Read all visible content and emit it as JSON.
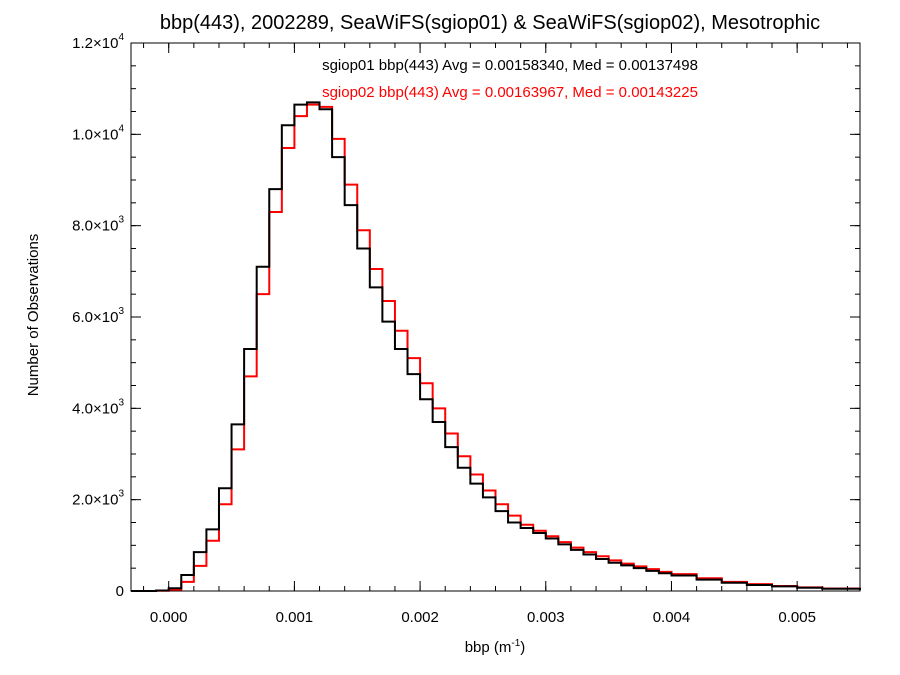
{
  "chart_data": {
    "type": "line",
    "title": "bbp(443), 2002289, SeaWiFS(sgiop01) & SeaWiFS(sgiop02), Mesotrophic",
    "xlabel": {
      "text": "bbp (m",
      "sup": "-1",
      "tail": ")"
    },
    "ylabel": "Number of Observations",
    "xlim": [
      -0.0003,
      0.0055
    ],
    "ylim": [
      0,
      12000
    ],
    "x_ticks": [
      {
        "value": 0.0,
        "label": "0.000"
      },
      {
        "value": 0.001,
        "label": "0.001"
      },
      {
        "value": 0.002,
        "label": "0.002"
      },
      {
        "value": 0.003,
        "label": "0.003"
      },
      {
        "value": 0.004,
        "label": "0.004"
      },
      {
        "value": 0.005,
        "label": "0.005"
      }
    ],
    "y_ticks": [
      {
        "value": 0,
        "mant": "0",
        "exp": ""
      },
      {
        "value": 2000,
        "mant": "2.0×10",
        "exp": "3"
      },
      {
        "value": 4000,
        "mant": "4.0×10",
        "exp": "3"
      },
      {
        "value": 6000,
        "mant": "6.0×10",
        "exp": "3"
      },
      {
        "value": 8000,
        "mant": "8.0×10",
        "exp": "3"
      },
      {
        "value": 10000,
        "mant": "1.0×10",
        "exp": "4"
      },
      {
        "value": 12000,
        "mant": "1.2×10",
        "exp": "4"
      }
    ],
    "grid": false,
    "annotations": [
      {
        "text": "sgiop01 bbp(443) Avg = 0.00158340, Med = 0.00137498",
        "color": "#000000"
      },
      {
        "text": "sgiop02 bbp(443) Avg = 0.00163967, Med = 0.00143225",
        "color": "#ff0000"
      }
    ],
    "series": [
      {
        "color": "#000000",
        "x": [
          -0.0003,
          -0.0002,
          -0.0001,
          0.0,
          0.0001,
          0.0002,
          0.0003,
          0.0004,
          0.0005,
          0.0006,
          0.0007,
          0.0008,
          0.0009,
          0.001,
          0.0011,
          0.0012,
          0.0013,
          0.0014,
          0.0015,
          0.0016,
          0.0017,
          0.0018,
          0.0019,
          0.002,
          0.0021,
          0.0022,
          0.0023,
          0.0024,
          0.0025,
          0.0026,
          0.0027,
          0.0028,
          0.0029,
          0.003,
          0.0031,
          0.0032,
          0.0033,
          0.0034,
          0.0035,
          0.0036,
          0.0037,
          0.0038,
          0.0039,
          0.004,
          0.0042,
          0.0044,
          0.0046,
          0.0048,
          0.005,
          0.0052,
          0.0055
        ],
        "y": [
          0,
          0,
          10,
          60,
          350,
          850,
          1350,
          2250,
          3650,
          5300,
          7100,
          8800,
          10200,
          10650,
          10700,
          10550,
          9500,
          8450,
          7500,
          6650,
          5900,
          5300,
          4750,
          4200,
          3700,
          3150,
          2700,
          2350,
          2050,
          1750,
          1500,
          1380,
          1270,
          1150,
          1020,
          900,
          800,
          700,
          620,
          560,
          500,
          440,
          390,
          340,
          250,
          180,
          130,
          100,
          70,
          50,
          20
        ]
      },
      {
        "color": "#ff0000",
        "x": [
          -0.0003,
          -0.0002,
          -0.0001,
          0.0,
          0.0001,
          0.0002,
          0.0003,
          0.0004,
          0.0005,
          0.0006,
          0.0007,
          0.0008,
          0.0009,
          0.001,
          0.0011,
          0.0012,
          0.0013,
          0.0014,
          0.0015,
          0.0016,
          0.0017,
          0.0018,
          0.0019,
          0.002,
          0.0021,
          0.0022,
          0.0023,
          0.0024,
          0.0025,
          0.0026,
          0.0027,
          0.0028,
          0.0029,
          0.003,
          0.0031,
          0.0032,
          0.0033,
          0.0034,
          0.0035,
          0.0036,
          0.0037,
          0.0038,
          0.0039,
          0.004,
          0.0042,
          0.0044,
          0.0046,
          0.0048,
          0.005,
          0.0052,
          0.0055
        ],
        "y": [
          0,
          0,
          5,
          30,
          200,
          550,
          1100,
          1900,
          3100,
          4700,
          6500,
          8300,
          9700,
          10400,
          10650,
          10600,
          9900,
          8900,
          7900,
          7050,
          6350,
          5700,
          5100,
          4550,
          4000,
          3450,
          2950,
          2550,
          2200,
          1900,
          1650,
          1450,
          1320,
          1200,
          1070,
          950,
          850,
          760,
          670,
          600,
          540,
          480,
          420,
          370,
          280,
          200,
          150,
          110,
          80,
          55,
          25
        ]
      }
    ]
  }
}
